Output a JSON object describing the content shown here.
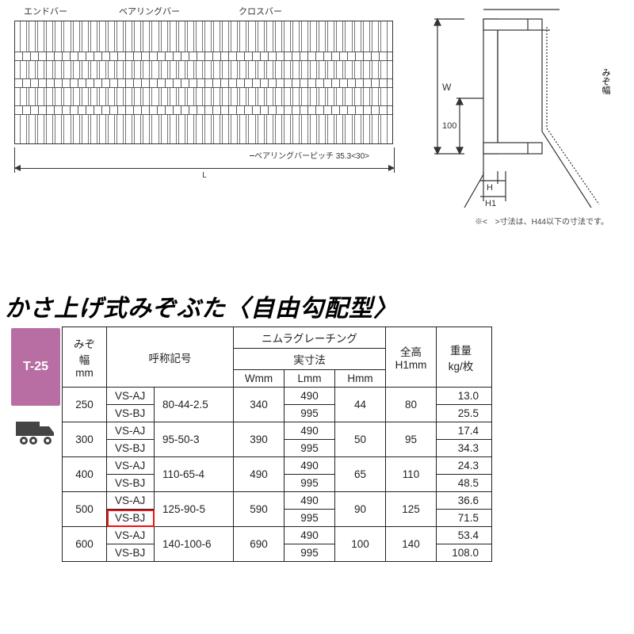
{
  "diagram": {
    "labels": {
      "end_bar": "エンドバー",
      "bearing_bar": "ベアリングバー",
      "cross_bar": "クロスバー"
    },
    "pitch_label": "ベアリングバーピッチ 35.3<30>",
    "dim_L": "L",
    "side_labels": {
      "W": "W",
      "n100": "100",
      "H": "H",
      "H1": "H1",
      "mizo": "みぞ幅"
    },
    "note": "※<　>寸法は、H44以下の寸法です。"
  },
  "title": "かさ上げ式みぞぶた〈自由勾配型〉",
  "badge": {
    "label": "T-25"
  },
  "table": {
    "headers": {
      "mizo": "みぞ幅\nmm",
      "code": "呼称記号",
      "nimura": "ニムラグレーチング",
      "jissun": "実寸法",
      "W": "Wmm",
      "L": "Lmm",
      "H": "Hmm",
      "H1": "全高\nH1mm",
      "kg": "重量\nkg/枚"
    },
    "rows": [
      {
        "mizo": "250",
        "c1a": "VS-AJ",
        "c1b": "VS-BJ",
        "c2": "80-44-2.5",
        "W": "340",
        "La": "490",
        "Lb": "995",
        "H": "44",
        "H1": "80",
        "kga": "13.0",
        "kgb": "25.5"
      },
      {
        "mizo": "300",
        "c1a": "VS-AJ",
        "c1b": "VS-BJ",
        "c2": "95-50-3",
        "W": "390",
        "La": "490",
        "Lb": "995",
        "H": "50",
        "H1": "95",
        "kga": "17.4",
        "kgb": "34.3"
      },
      {
        "mizo": "400",
        "c1a": "VS-AJ",
        "c1b": "VS-BJ",
        "c2": "110-65-4",
        "W": "490",
        "La": "490",
        "Lb": "995",
        "H": "65",
        "H1": "110",
        "kga": "24.3",
        "kgb": "48.5"
      },
      {
        "mizo": "500",
        "c1a": "VS-AJ",
        "c1b": "VS-BJ",
        "c2": "125-90-5",
        "W": "590",
        "La": "490",
        "Lb": "995",
        "H": "90",
        "H1": "125",
        "kga": "36.6",
        "kgb": "71.5",
        "highlight_b": true
      },
      {
        "mizo": "600",
        "c1a": "VS-AJ",
        "c1b": "VS-BJ",
        "c2": "140-100-6",
        "W": "690",
        "La": "490",
        "Lb": "995",
        "H": "100",
        "H1": "140",
        "kga": "53.4",
        "kgb": "108.0"
      }
    ]
  },
  "colors": {
    "badge_bg": "#b96ea3",
    "highlight": "#e11",
    "line": "#333333",
    "text": "#222222"
  }
}
